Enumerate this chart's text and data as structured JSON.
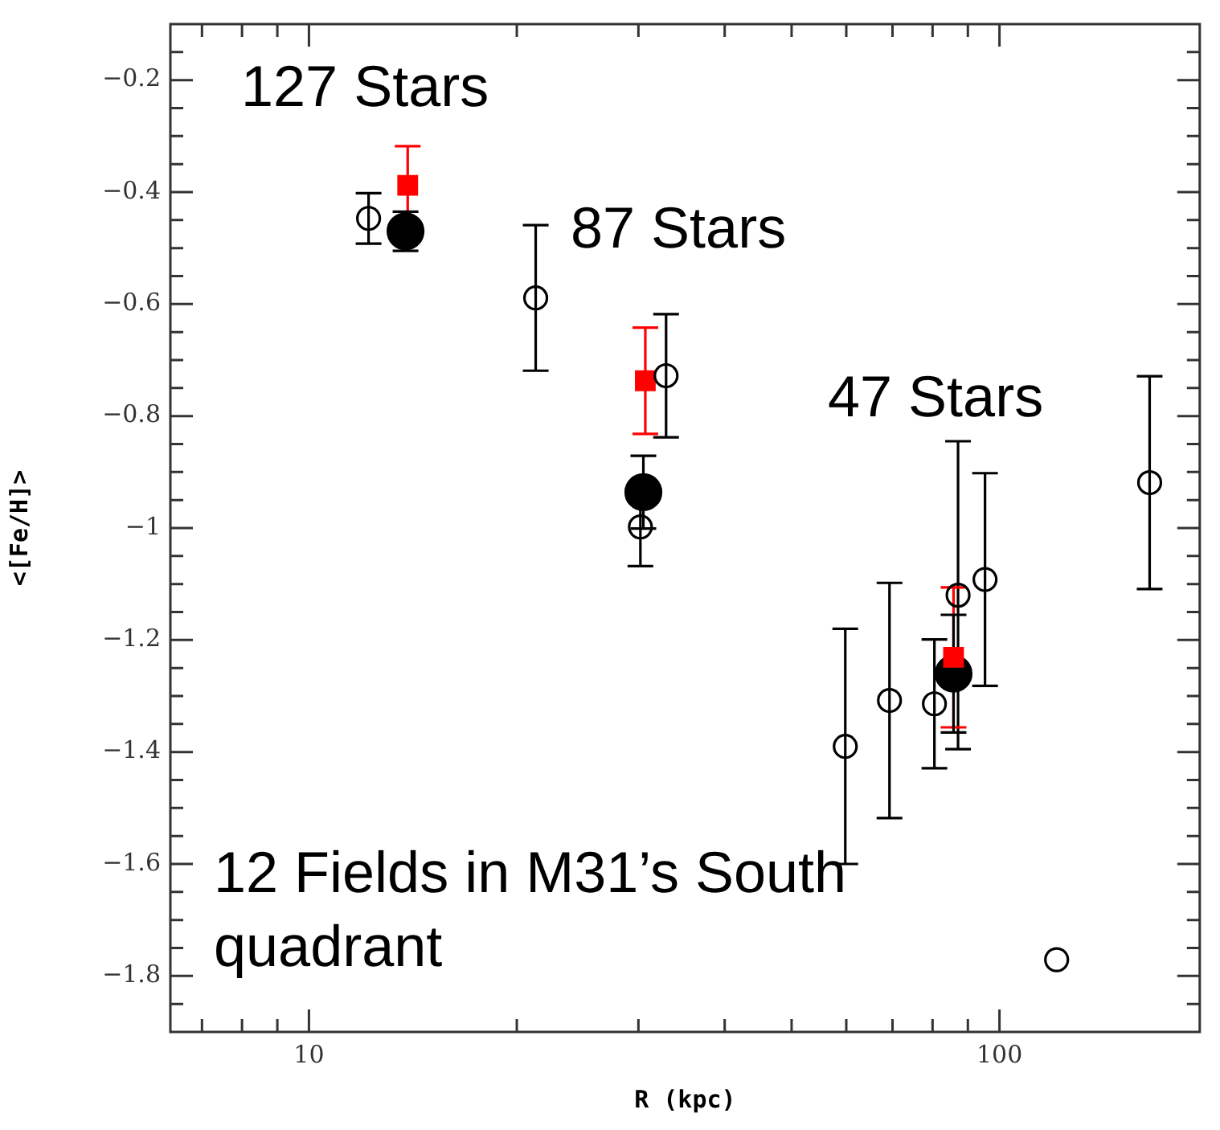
{
  "chart_data": {
    "type": "scatter",
    "xlabel": "R (kpc)",
    "ylabel": "<[Fe/H]>",
    "log": "x",
    "grid": false,
    "legend": false,
    "xlim": [
      6.3,
      195
    ],
    "ylim": [
      -1.9,
      -0.1
    ],
    "xticks": [
      {
        "value": 7,
        "label": null
      },
      {
        "value": 8,
        "label": null
      },
      {
        "value": 9,
        "label": null
      },
      10,
      {
        "value": 20,
        "label": null
      },
      {
        "value": 30,
        "label": null
      },
      {
        "value": 40,
        "label": null
      },
      {
        "value": 50,
        "label": null
      },
      {
        "value": 60,
        "label": null
      },
      {
        "value": 70,
        "label": null
      },
      {
        "value": 80,
        "label": null
      },
      {
        "value": 90,
        "label": null
      },
      100
    ],
    "yticks": [
      {
        "value": -0.15,
        "label": null
      },
      -0.2,
      {
        "value": -0.25,
        "label": null
      },
      {
        "value": -0.3,
        "label": null
      },
      {
        "value": -0.35,
        "label": null
      },
      -0.4,
      {
        "value": -0.45,
        "label": null
      },
      {
        "value": -0.5,
        "label": null
      },
      {
        "value": -0.55,
        "label": null
      },
      -0.6,
      {
        "value": -0.65,
        "label": null
      },
      {
        "value": -0.7,
        "label": null
      },
      {
        "value": -0.75,
        "label": null
      },
      -0.8,
      {
        "value": -0.85,
        "label": null
      },
      {
        "value": -0.9,
        "label": null
      },
      {
        "value": -0.95,
        "label": null
      },
      -1,
      {
        "value": -1.05,
        "label": null
      },
      {
        "value": -1.1,
        "label": null
      },
      {
        "value": -1.15,
        "label": null
      },
      -1.2,
      {
        "value": -1.25,
        "label": null
      },
      {
        "value": -1.3,
        "label": null
      },
      {
        "value": -1.35,
        "label": null
      },
      -1.4,
      {
        "value": -1.45,
        "label": null
      },
      {
        "value": -1.5,
        "label": null
      },
      {
        "value": -1.55,
        "label": null
      },
      -1.6,
      {
        "value": -1.65,
        "label": null
      },
      {
        "value": -1.7,
        "label": null
      },
      {
        "value": -1.75,
        "label": null
      },
      -1.8,
      {
        "value": -1.85,
        "label": null
      }
    ],
    "series": [
      {
        "color": "#000000",
        "marker": "circle",
        "x": [
          12.2,
          21.3,
          32.9,
          30.2,
          165,
          59.8,
          69.3,
          80.5,
          87.1,
          95.3,
          121
        ],
        "values": [
          -0.447,
          -0.589,
          -0.728,
          -0.998,
          -0.919,
          -1.39,
          -1.308,
          -1.314,
          -1.12,
          -1.092,
          -1.771
        ],
        "errors": [
          0.045,
          0.13,
          0.11,
          0.07,
          0.19,
          0.21,
          0.21,
          0.115,
          0.275,
          0.19,
          null
        ]
      },
      {
        "color": "#ff0000",
        "marker": "square",
        "x": [
          13.9,
          30.7,
          85.8
        ],
        "values": [
          -0.388,
          -0.737,
          -1.231
        ],
        "errors": [
          0.07,
          0.095,
          0.125
        ]
      },
      {
        "color": "#000000",
        "marker": "circle",
        "x": [
          13.8,
          30.5,
          85.8
        ],
        "values": [
          -0.47,
          -0.936,
          -1.26
        ],
        "errors": [
          0.035,
          0.065,
          0.105
        ]
      }
    ],
    "annotations": [
      "127 Stars",
      "87 Stars",
      "47 Stars",
      "12 Fields in M31’s South quadrant"
    ]
  }
}
